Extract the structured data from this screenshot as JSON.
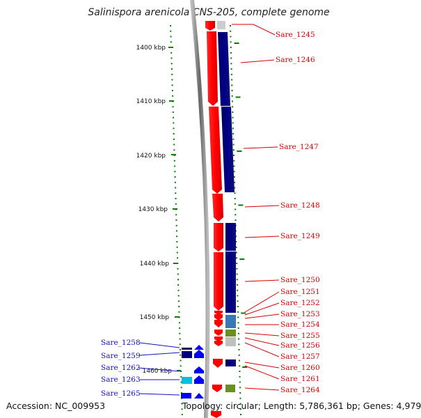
{
  "title": "Salinispora arenicola CNS-205, complete genome",
  "accession": "Accession: NC_009953",
  "topology": "Topology: circular; Length: 5,786,361 bp; Genes: 4,979",
  "scale_labels": [
    "1400 kbp",
    "1410 kbp",
    "1420 kbp",
    "1430 kbp",
    "1440 kbp",
    "1450 kbp",
    "1460 kbp"
  ],
  "gene_labels_right": [
    "Sare_1245",
    "Sare_1246",
    "Sare_1247",
    "Sare_1248",
    "Sare_1249",
    "Sare_1250",
    "Sare_1251",
    "Sare_1252",
    "Sare_1253",
    "Sare_1254",
    "Sare_1255",
    "Sare_1256",
    "Sare_1257",
    "Sare_1260",
    "Sare_1261",
    "Sare_1264"
  ],
  "gene_labels_left": [
    "Sare_1258",
    "Sare_1259",
    "Sare_1262",
    "Sare_1263",
    "Sare_1265"
  ],
  "colors": {
    "forward_strand": "#ff0000",
    "reverse_strand": "#000080",
    "label_right": "#d40000",
    "label_left": "#1010c0",
    "scale_ticks": "#008000",
    "backbone": "#888888"
  }
}
